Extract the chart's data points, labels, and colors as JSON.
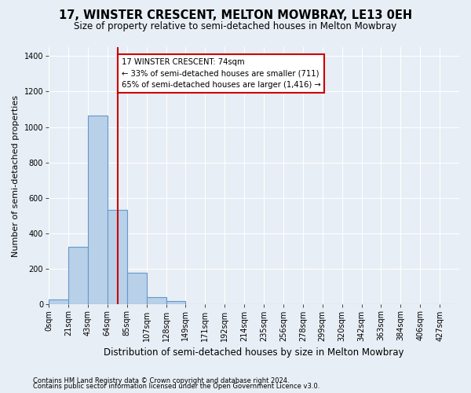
{
  "title": "17, WINSTER CRESCENT, MELTON MOWBRAY, LE13 0EH",
  "subtitle": "Size of property relative to semi-detached houses in Melton Mowbray",
  "xlabel": "Distribution of semi-detached houses by size in Melton Mowbray",
  "ylabel": "Number of semi-detached properties",
  "footnote1": "Contains HM Land Registry data © Crown copyright and database right 2024.",
  "footnote2": "Contains public sector information licensed under the Open Government Licence v3.0.",
  "bar_labels": [
    "0sqm",
    "21sqm",
    "43sqm",
    "64sqm",
    "85sqm",
    "107sqm",
    "128sqm",
    "149sqm",
    "171sqm",
    "192sqm",
    "214sqm",
    "235sqm",
    "256sqm",
    "278sqm",
    "299sqm",
    "320sqm",
    "342sqm",
    "363sqm",
    "384sqm",
    "406sqm",
    "427sqm"
  ],
  "bar_values": [
    30,
    325,
    1065,
    535,
    180,
    40,
    18,
    0,
    0,
    0,
    0,
    0,
    0,
    0,
    0,
    0,
    0,
    0,
    0,
    0,
    0
  ],
  "bar_color": "#b8d0e8",
  "bar_edge_color": "#6699cc",
  "annotation_text": "17 WINSTER CRESCENT: 74sqm\n← 33% of semi-detached houses are smaller (711)\n65% of semi-detached houses are larger (1,416) →",
  "annotation_box_color": "#ffffff",
  "annotation_box_edge": "#cc0000",
  "vline_color": "#cc0000",
  "ylim": [
    0,
    1450
  ],
  "yticks": [
    0,
    200,
    400,
    600,
    800,
    1000,
    1200,
    1400
  ],
  "bg_color": "#e8eef5",
  "plot_bg_color": "#e8eef5",
  "grid_color": "#ffffff",
  "bin_width": 21,
  "property_sqm": 74
}
